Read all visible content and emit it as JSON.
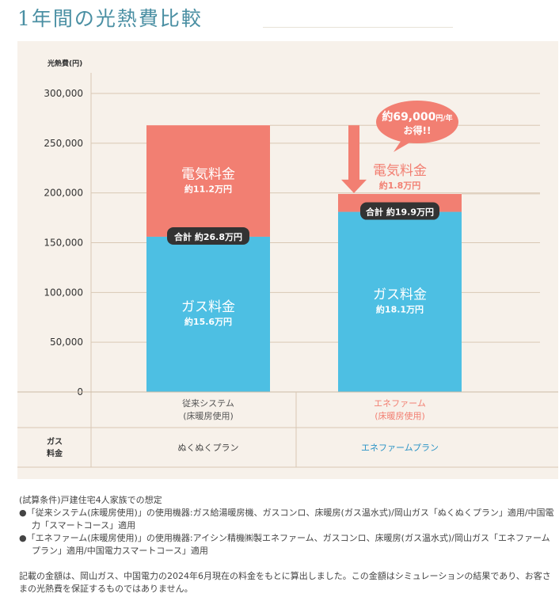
{
  "page": {
    "title": "1年間の光熱費比較"
  },
  "chart_data": {
    "type": "bar",
    "stacked": true,
    "ylabel": "光熱費(円)",
    "ylim": [
      0,
      300000
    ],
    "yticks": [
      0,
      50000,
      100000,
      150000,
      200000,
      250000,
      300000
    ],
    "ytick_labels": [
      "0",
      "50,000",
      "100,000",
      "150,000",
      "200,000",
      "250,000",
      "300,000"
    ],
    "grid": true,
    "categories": [
      {
        "line1": "従来システム",
        "line2": "(床暖房使用)"
      },
      {
        "line1": "エネファーム",
        "line2": "(床暖房使用)"
      }
    ],
    "series": [
      {
        "name": "ガス料金",
        "values": [
          156000,
          181000
        ],
        "label": "ガス料金",
        "value_labels": [
          "約15.6万円",
          "約18.1万円"
        ]
      },
      {
        "name": "電気料金",
        "values": [
          112000,
          18000
        ],
        "label": "電気料金",
        "value_labels": [
          "約11.2万円",
          "約1.8万円"
        ]
      }
    ],
    "totals": [
      268000,
      199000
    ],
    "total_labels": [
      "合計 約26.8万円",
      "合計 約19.9万円"
    ],
    "savings": {
      "amount": "約69,000",
      "unit": "円/年",
      "line2": "お得!!"
    },
    "gas_plan": {
      "header_line1": "ガス",
      "header_line2": "料金",
      "values": [
        "ぬくぬくプラン",
        "エネファームプラン"
      ]
    },
    "colors": {
      "gas": "#4dbfe3",
      "electric": "#f27f72",
      "arrow": "#f27f72",
      "pill": "#333333"
    }
  },
  "notes": {
    "condition": "(試算条件)戸建住宅4人家族での想定",
    "items": [
      "●「従来システム(床暖房使用)」の使用機器:ガス給湯暖房機、ガスコンロ、床暖房(ガス温水式)/岡山ガス「ぬくぬくプラン」適用/中国電力「スマートコース」適用",
      "●「エネファーム(床暖房使用)」の使用機器:アイシン精機㈱製エネファーム、ガスコンロ、床暖房(ガス温水式)/岡山ガス「エネファームプラン」適用/中国電力スマートコース」適用"
    ],
    "disclaimer": "記載の金額は、岡山ガス、中国電力の2024年6月現在の料金をもとに算出しました。この金額はシミュレーションの結果であり、お客さまの光熱費を保証するものではありません。"
  }
}
